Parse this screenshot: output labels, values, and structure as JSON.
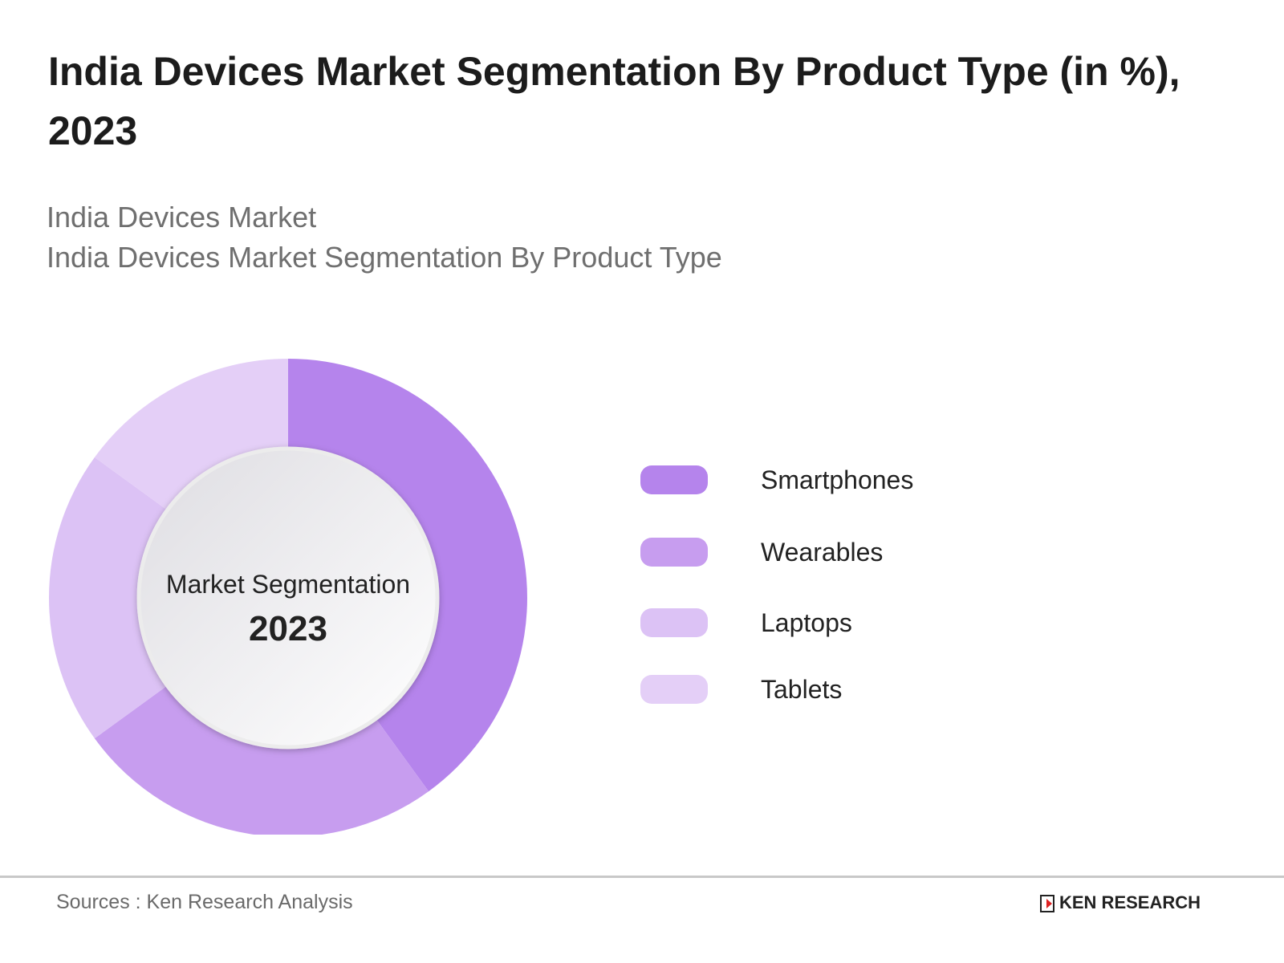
{
  "header": {
    "title": "India Devices Market Segmentation By Product Type (in %), 2023",
    "subtitle_1": "India Devices Market",
    "subtitle_2": "India Devices Market Segmentation By Product Type"
  },
  "chart_data": {
    "type": "pie",
    "variant": "donut",
    "center_label": "Market Segmentation",
    "center_value": "2023",
    "legend_position": "right",
    "categories": [
      "Smartphones",
      "Wearables",
      "Laptops",
      "Tablets"
    ],
    "values": [
      40,
      25,
      20,
      15
    ],
    "colors": [
      "#b584ec",
      "#c79def",
      "#dcc2f5",
      "#e4cff7"
    ]
  },
  "footer": {
    "source": "Sources : Ken Research Analysis",
    "logo_text": "KEN RESEARCH"
  }
}
